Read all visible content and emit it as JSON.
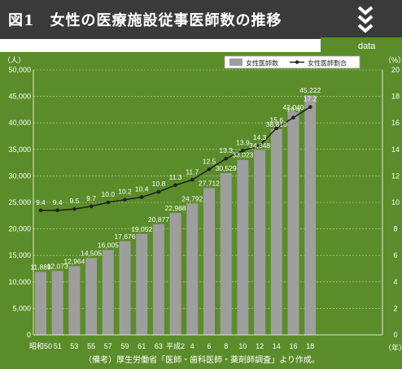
{
  "header": {
    "title": "図1　女性の医療施設従事医師数の推移"
  },
  "colors": {
    "header_bg": "#3a3a3a",
    "panel_bg": "#5b8c2a",
    "bar": "#9e9e9e",
    "line": "#222222"
  },
  "icons": {
    "chevron": "triple-chevron-down-icon"
  },
  "chart_data": {
    "type": "bar",
    "corner_label": "data",
    "left_unit": "（人）",
    "right_unit": "（%）",
    "x_unit": "（年）",
    "categories": [
      "昭和50",
      "51",
      "53",
      "55",
      "57",
      "59",
      "61",
      "63",
      "平成2",
      "4",
      "6",
      "8",
      "10",
      "12",
      "14",
      "16",
      "18"
    ],
    "series": [
      {
        "name": "女性医師数",
        "type": "bar",
        "axis": "left",
        "values": [
          11889,
          12073,
          12964,
          14505,
          16005,
          17676,
          19052,
          20877,
          22988,
          24792,
          27712,
          30529,
          33023,
          34848,
          38810,
          42040,
          45222
        ],
        "labels": [
          "11,889",
          "12,073",
          "12,964",
          "14,505",
          "16,005",
          "17,676",
          "19,052",
          "20,877",
          "22,988",
          "24,792",
          "27,712",
          "30,529",
          "33,023",
          "34,848",
          "38,810",
          "42,040",
          "45,222"
        ]
      },
      {
        "name": "女性医師割合",
        "type": "line",
        "axis": "right",
        "values": [
          9.4,
          9.4,
          9.5,
          9.7,
          10.0,
          10.2,
          10.4,
          10.8,
          11.3,
          11.7,
          12.5,
          13.3,
          13.9,
          14.3,
          15.6,
          16.4,
          17.2
        ],
        "labels": [
          "9.4",
          "9.4",
          "9.5",
          "9.7",
          "10.0",
          "10.2",
          "10.4",
          "10.8",
          "11.3",
          "11.7",
          "12.5",
          "13.3",
          "13.9",
          "14.3",
          "15.6",
          "16.4",
          "17.2"
        ]
      }
    ],
    "y_left": {
      "range": [
        0,
        50000
      ],
      "ticks": [
        0,
        5000,
        10000,
        15000,
        20000,
        25000,
        30000,
        35000,
        40000,
        45000,
        50000
      ],
      "tick_labels": [
        "0",
        "5,000",
        "10,000",
        "15,000",
        "20,000",
        "25,000",
        "30,000",
        "35,000",
        "40,000",
        "45,000",
        "50,000"
      ]
    },
    "y_right": {
      "range": [
        0,
        20
      ],
      "ticks": [
        0,
        2,
        4,
        6,
        8,
        10,
        12,
        14,
        16,
        18,
        20
      ],
      "tick_labels": [
        "0",
        "2",
        "4",
        "6",
        "8",
        "10",
        "12",
        "14",
        "16",
        "18",
        "20"
      ]
    },
    "grid": true,
    "legend_position": "top-right",
    "source_note": "（備考）厚生労働省「医師・歯科医師・薬剤師調査」より作成。"
  }
}
